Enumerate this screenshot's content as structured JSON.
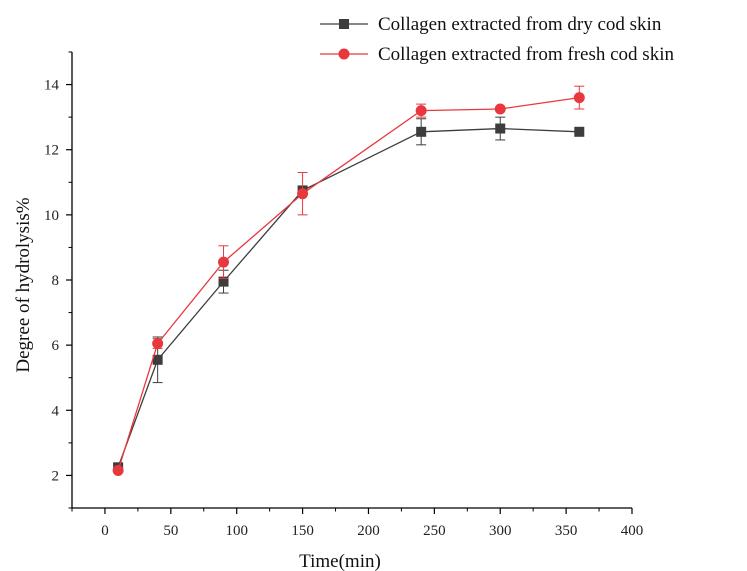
{
  "chart_data": {
    "type": "line",
    "xlabel": "Time(min)",
    "ylabel": "Degree of hydrolysis%",
    "xlim": [
      -25,
      400
    ],
    "ylim": [
      1,
      15
    ],
    "xticks": [
      0,
      50,
      100,
      150,
      200,
      250,
      300,
      350,
      400
    ],
    "yticks": [
      2,
      4,
      6,
      8,
      10,
      12,
      14
    ],
    "grid": false,
    "legend_position": "top-right",
    "series": [
      {
        "name": "Collagen extracted from dry cod skin",
        "color": "#3d3d3d",
        "marker": "square",
        "x": [
          10,
          40,
          90,
          150,
          240,
          300,
          360
        ],
        "y": [
          2.25,
          5.55,
          7.95,
          10.75,
          12.55,
          12.65,
          12.55
        ],
        "err": [
          0,
          0.7,
          0.35,
          0,
          0.4,
          0.35,
          0
        ]
      },
      {
        "name": "Collagen extracted from fresh cod skin",
        "color": "#e8383d",
        "marker": "circle",
        "x": [
          10,
          40,
          90,
          150,
          240,
          300,
          360
        ],
        "y": [
          2.15,
          6.05,
          8.55,
          10.65,
          13.2,
          13.25,
          13.6
        ],
        "err": [
          0,
          0.15,
          0.5,
          0.65,
          0.2,
          0,
          0.35
        ]
      }
    ]
  }
}
